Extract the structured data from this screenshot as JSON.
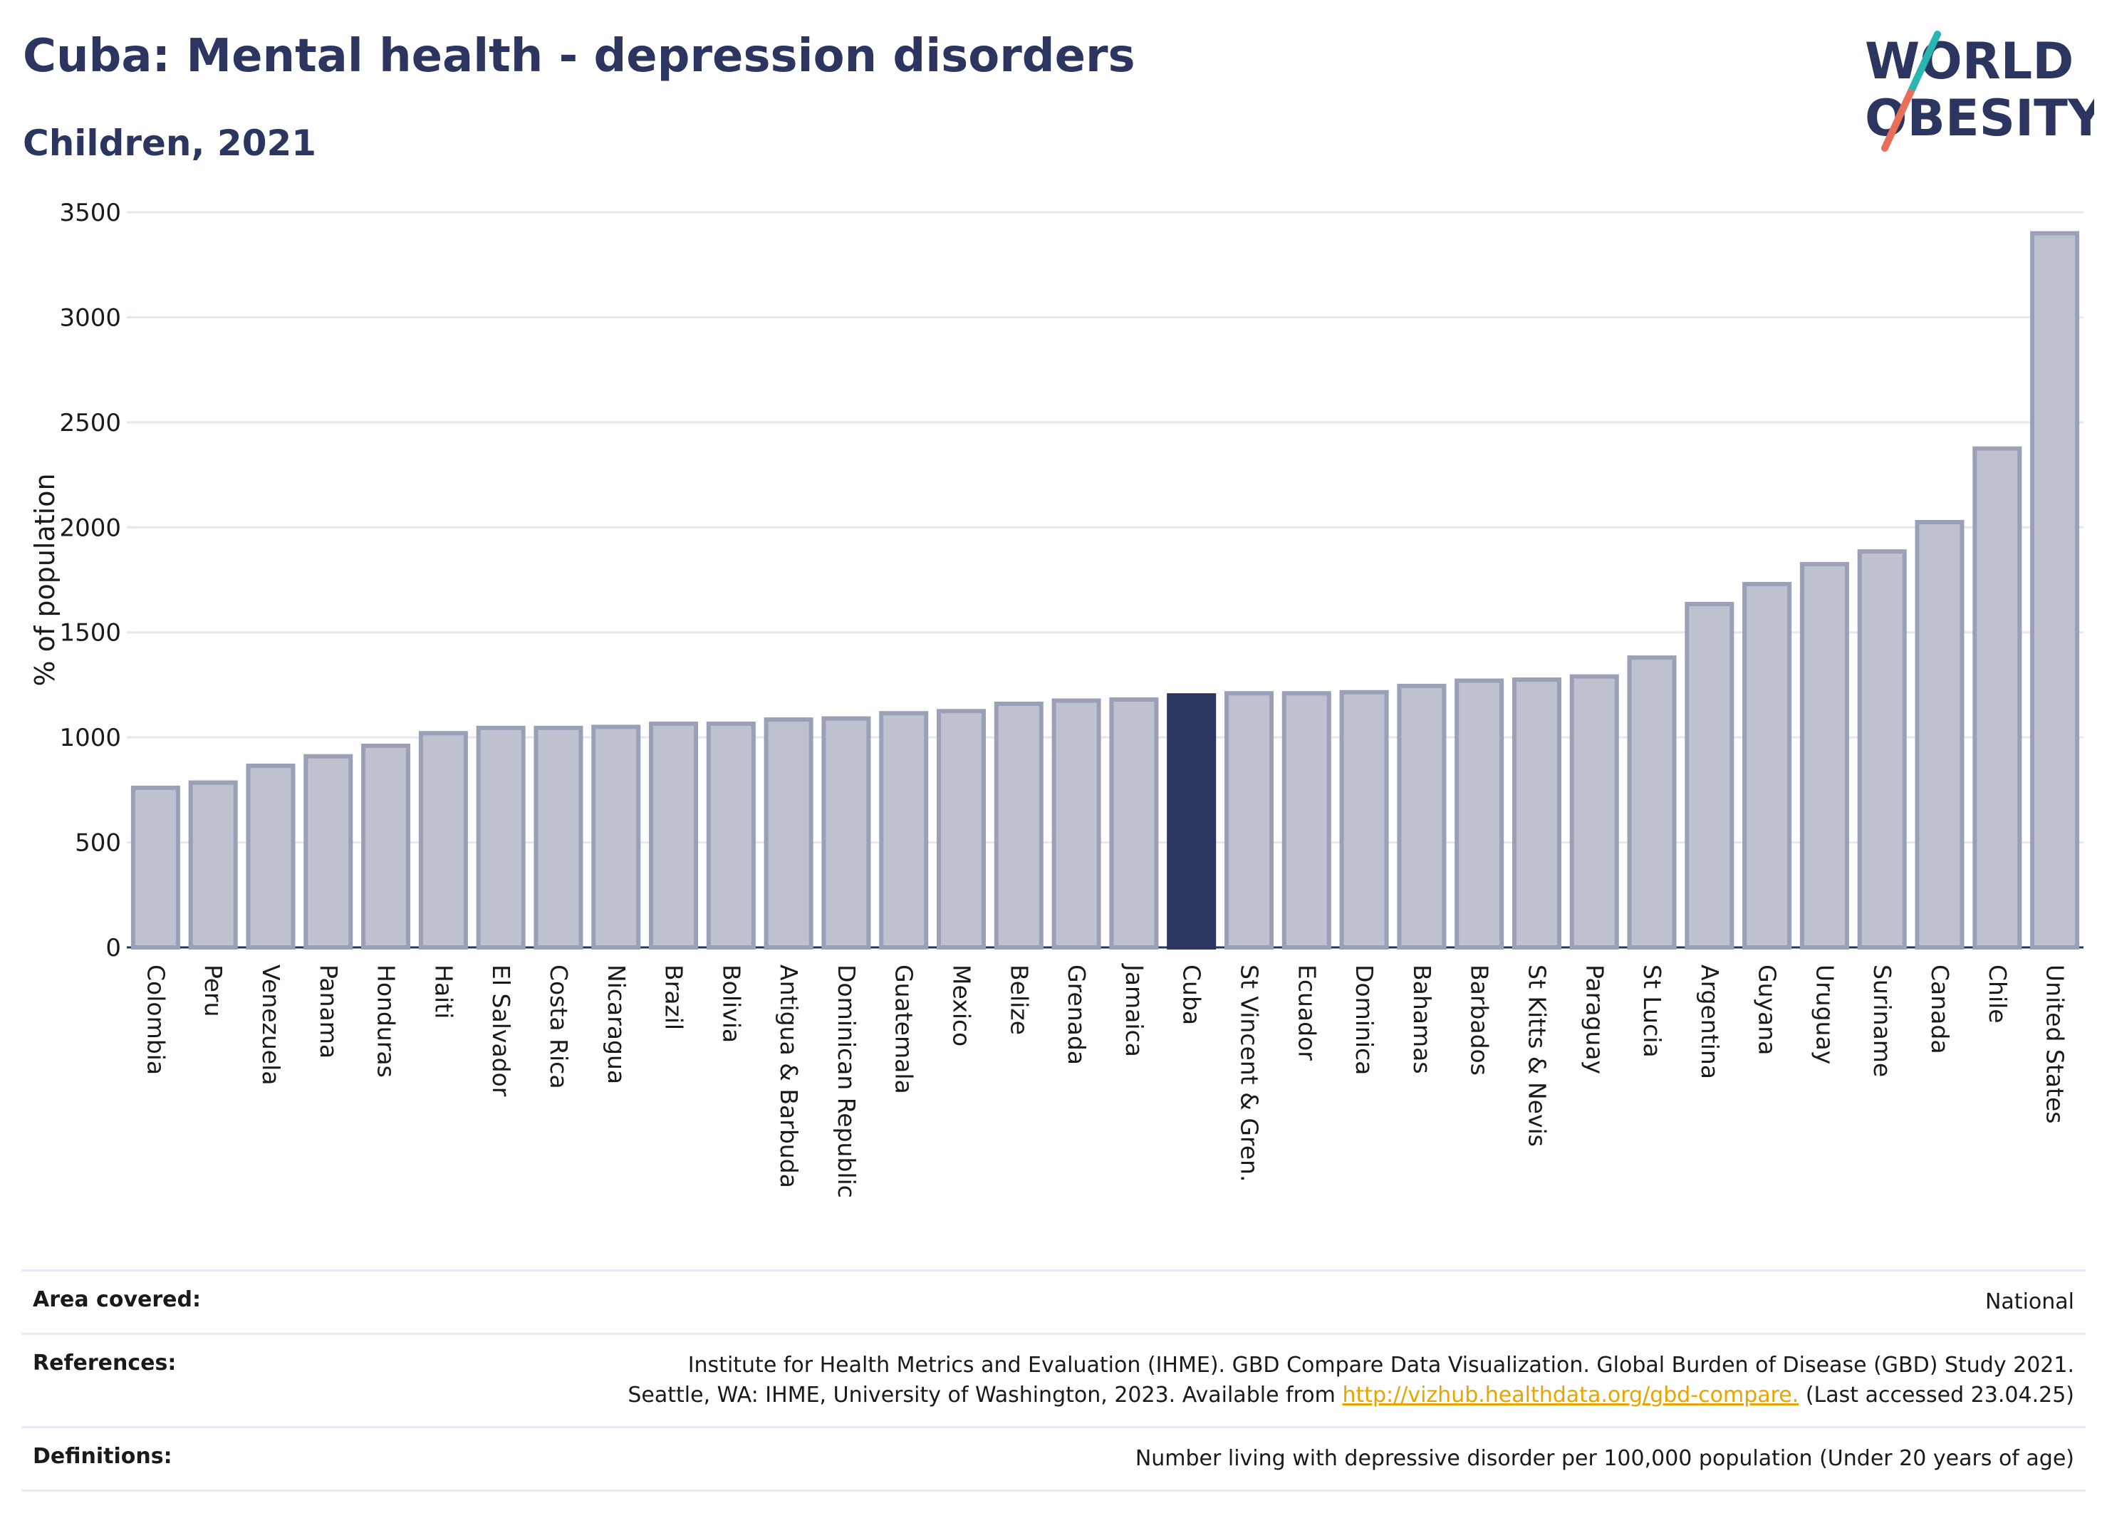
{
  "header": {
    "title": "Cuba: Mental health - depression disorders",
    "subtitle": "Children, 2021",
    "logo_line1": "WORLD",
    "logo_line2": "OBESITY"
  },
  "colors": {
    "highlight": "#2b355f",
    "bar_fill": "#bec2cf",
    "bar_stroke": "#9aa0b8",
    "logo_teal": "#2bb5b0",
    "logo_coral": "#e8705a"
  },
  "chart_data": {
    "type": "bar",
    "ylabel": "% of population",
    "ylim": [
      0,
      3500
    ],
    "yticks": [
      0,
      500,
      1000,
      1500,
      2000,
      2500,
      3000,
      3500
    ],
    "grid": true,
    "highlight": "Cuba",
    "categories": [
      "Colombia",
      "Peru",
      "Venezuela",
      "Panama",
      "Honduras",
      "Haiti",
      "El Salvador",
      "Costa Rica",
      "Nicaragua",
      "Brazil",
      "Bolivia",
      "Antigua & Barbuda",
      "Dominican Republic",
      "Guatemala",
      "Mexico",
      "Belize",
      "Grenada",
      "Jamaica",
      "Cuba",
      "St Vincent & Gren.",
      "Ecuador",
      "Dominica",
      "Bahamas",
      "Barbados",
      "St Kitts & Nevis",
      "Paraguay",
      "St Lucia",
      "Argentina",
      "Guyana",
      "Uruguay",
      "Suriname",
      "Canada",
      "Chile",
      "United States"
    ],
    "values": [
      760,
      785,
      865,
      910,
      960,
      1020,
      1045,
      1045,
      1050,
      1065,
      1065,
      1085,
      1090,
      1115,
      1125,
      1160,
      1175,
      1180,
      1200,
      1210,
      1210,
      1215,
      1245,
      1270,
      1275,
      1290,
      1380,
      1635,
      1730,
      1825,
      1885,
      2025,
      2375,
      3400
    ]
  },
  "info": {
    "area_label": "Area covered:",
    "area_value": "National",
    "references_label": "References:",
    "references_line1": "Institute for Health Metrics and Evaluation (IHME). GBD Compare Data Visualization. Global Burden of Disease (GBD) Study 2021.",
    "references_line2_prefix": "Seattle, WA: IHME, University of Washington, 2023. Available from",
    "references_link": "http://vizhub.healthdata.org/gbd-compare.",
    "references_suffix": "(Last accessed 23.04.25)",
    "definitions_label": "Definitions:",
    "definitions_value": "Number living with depressive disorder per 100,000 population (Under 20 years of age)"
  }
}
